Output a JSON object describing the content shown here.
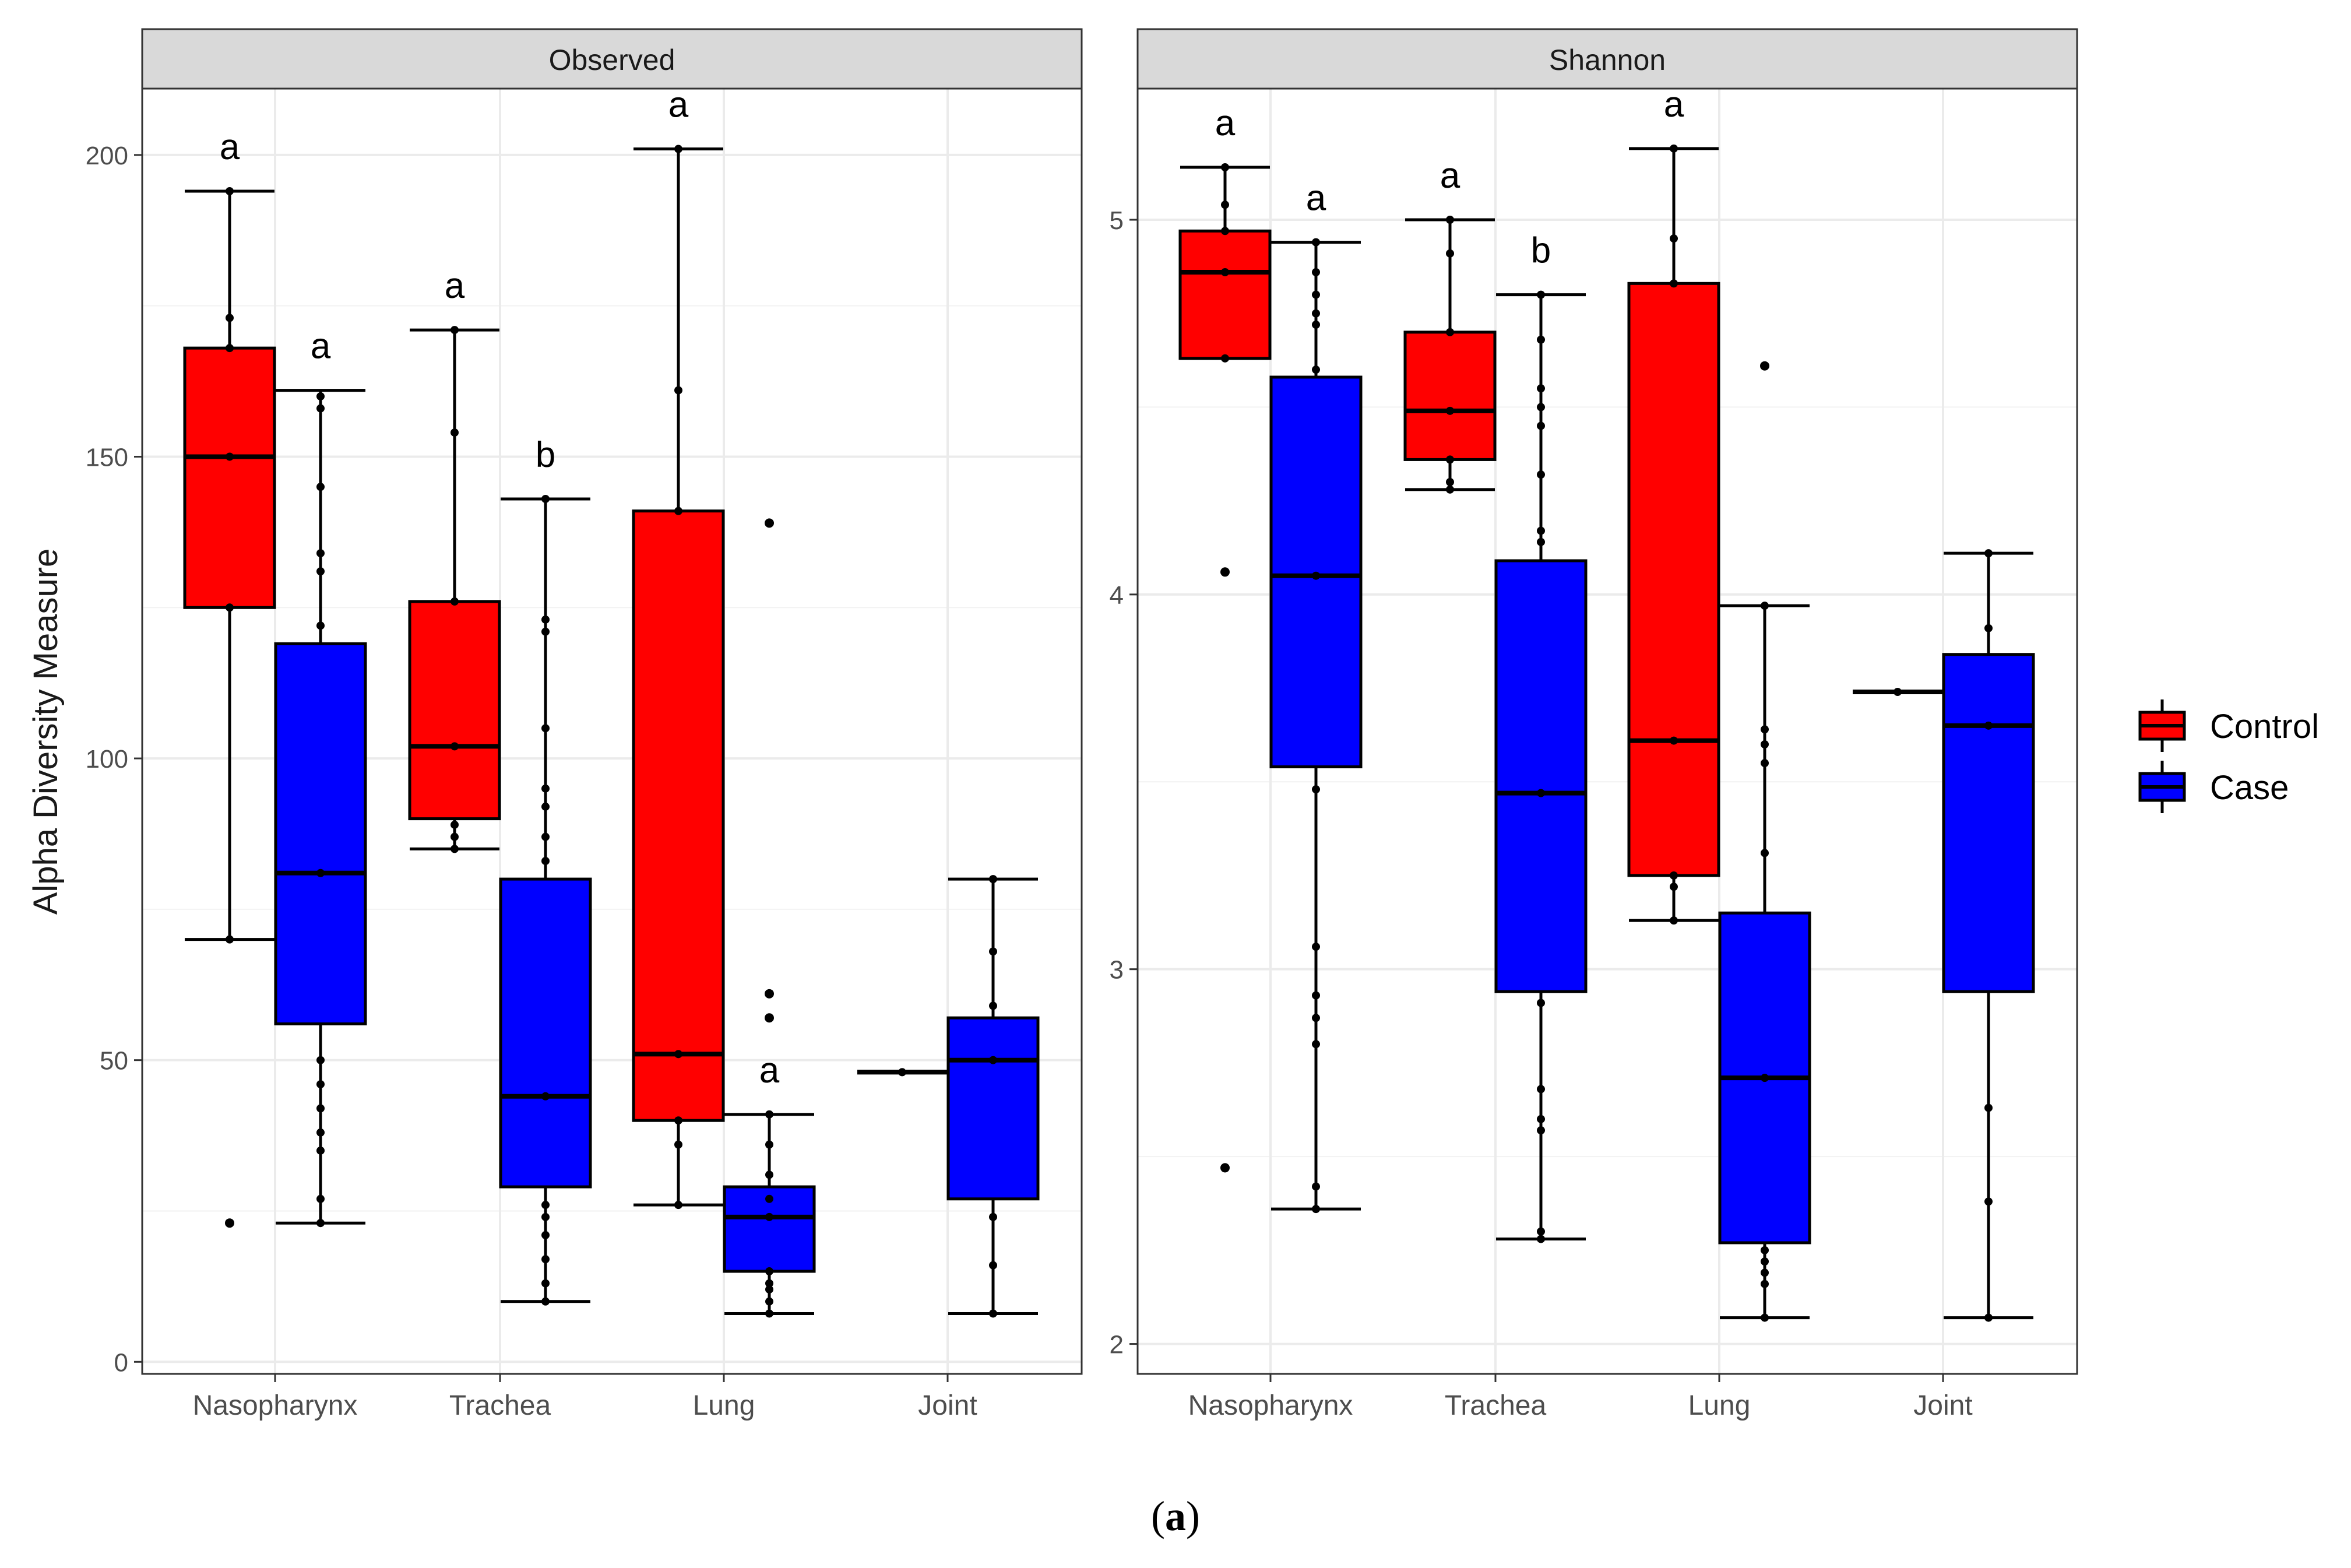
{
  "figure": {
    "ylabel": "Alpha Diversity Measure",
    "caption_open": "(",
    "caption_letter": "a",
    "caption_close": ")"
  },
  "colors": {
    "control": "#ff0000",
    "case": "#0000ff",
    "strip": "#d9d9d9",
    "grid": "#ebebeb"
  },
  "chart_data": [
    {
      "type": "box",
      "title": "Observed",
      "xlabel": "",
      "ylabel": "Alpha Diversity Measure",
      "categories": [
        "Nasopharynx",
        "Trachea",
        "Lung",
        "Joint"
      ],
      "ylim": [
        -2,
        211
      ],
      "yticks": [
        0,
        50,
        100,
        150,
        200
      ],
      "ytick_labels": [
        "0",
        "50",
        "100",
        "150",
        "200"
      ],
      "series": [
        {
          "name": "Control",
          "boxes": [
            {
              "category": "Nasopharynx",
              "min": 70,
              "q1": 125,
              "median": 150,
              "q3": 168,
              "max": 194,
              "outliers": [
                23
              ],
              "points": [
                70,
                125,
                150,
                168,
                173,
                194
              ],
              "letter": "a"
            },
            {
              "category": "Trachea",
              "min": 85,
              "q1": 90,
              "median": 102,
              "q3": 126,
              "max": 171,
              "outliers": [],
              "points": [
                85,
                87,
                89,
                102,
                126,
                154,
                171
              ],
              "letter": "a"
            },
            {
              "category": "Lung",
              "min": 26,
              "q1": 40,
              "median": 51,
              "q3": 141,
              "max": 201,
              "outliers": [],
              "points": [
                26,
                36,
                40,
                51,
                141,
                161,
                201
              ],
              "letter": "a"
            },
            {
              "category": "Joint",
              "min": 48,
              "q1": 48,
              "median": 48,
              "q3": 48,
              "max": 48,
              "outliers": [],
              "points": [
                48
              ],
              "letter": ""
            }
          ]
        },
        {
          "name": "Case",
          "boxes": [
            {
              "category": "Nasopharynx",
              "min": 23,
              "q1": 56,
              "median": 81,
              "q3": 119,
              "max": 161,
              "outliers": [],
              "points": [
                23,
                27,
                35,
                38,
                42,
                46,
                50,
                81,
                122,
                131,
                134,
                145,
                158,
                160
              ],
              "letter": "a"
            },
            {
              "category": "Trachea",
              "min": 10,
              "q1": 29,
              "median": 44,
              "q3": 80,
              "max": 143,
              "outliers": [],
              "points": [
                10,
                13,
                17,
                21,
                24,
                26,
                44,
                83,
                87,
                92,
                95,
                105,
                121,
                123,
                143
              ],
              "letter": "b"
            },
            {
              "category": "Lung",
              "min": 8,
              "q1": 15,
              "median": 24,
              "q3": 29,
              "max": 41,
              "outliers": [
                57,
                61,
                139
              ],
              "points": [
                8,
                10,
                12,
                13,
                15,
                24,
                27,
                31,
                36,
                41
              ],
              "letter": "a"
            },
            {
              "category": "Joint",
              "min": 8,
              "q1": 27,
              "median": 50,
              "q3": 57,
              "max": 80,
              "outliers": [],
              "points": [
                8,
                16,
                24,
                50,
                59,
                68,
                80
              ],
              "letter": ""
            }
          ]
        }
      ]
    },
    {
      "type": "box",
      "title": "Shannon",
      "xlabel": "",
      "ylabel": "",
      "categories": [
        "Nasopharynx",
        "Trachea",
        "Lung",
        "Joint"
      ],
      "ylim": [
        1.92,
        5.35
      ],
      "yticks": [
        2,
        3,
        4,
        5
      ],
      "ytick_labels": [
        "2",
        "3",
        "4",
        "5"
      ],
      "series": [
        {
          "name": "Control",
          "boxes": [
            {
              "category": "Nasopharynx",
              "min": 4.63,
              "q1": 4.63,
              "median": 4.86,
              "q3": 4.97,
              "max": 5.14,
              "outliers": [
                4.06,
                2.47
              ],
              "points": [
                4.63,
                4.86,
                4.97,
                5.04,
                5.14
              ],
              "letter": "a"
            },
            {
              "category": "Trachea",
              "min": 4.28,
              "q1": 4.36,
              "median": 4.49,
              "q3": 4.7,
              "max": 5.0,
              "outliers": [],
              "points": [
                4.28,
                4.3,
                4.36,
                4.49,
                4.7,
                4.91,
                5.0
              ],
              "letter": "a"
            },
            {
              "category": "Lung",
              "min": 3.13,
              "q1": 3.25,
              "median": 3.61,
              "q3": 4.83,
              "max": 5.19,
              "outliers": [],
              "points": [
                3.13,
                3.22,
                3.25,
                3.61,
                4.83,
                4.95,
                5.19
              ],
              "letter": "a"
            },
            {
              "category": "Joint",
              "min": 3.74,
              "q1": 3.74,
              "median": 3.74,
              "q3": 3.74,
              "max": 3.74,
              "outliers": [],
              "points": [
                3.74
              ],
              "letter": ""
            }
          ]
        },
        {
          "name": "Case",
          "boxes": [
            {
              "category": "Nasopharynx",
              "min": 2.36,
              "q1": 3.54,
              "median": 4.05,
              "q3": 4.58,
              "max": 4.94,
              "outliers": [],
              "points": [
                2.36,
                2.42,
                2.8,
                2.87,
                2.93,
                3.06,
                3.48,
                4.05,
                4.6,
                4.72,
                4.75,
                4.8,
                4.86,
                4.94
              ],
              "letter": "a"
            },
            {
              "category": "Trachea",
              "min": 2.28,
              "q1": 2.94,
              "median": 3.47,
              "q3": 4.09,
              "max": 4.8,
              "outliers": [],
              "points": [
                2.28,
                2.3,
                2.57,
                2.6,
                2.68,
                2.91,
                3.47,
                4.14,
                4.17,
                4.32,
                4.45,
                4.5,
                4.55,
                4.68,
                4.8
              ],
              "letter": "b"
            },
            {
              "category": "Lung",
              "min": 2.07,
              "q1": 2.27,
              "median": 2.71,
              "q3": 3.15,
              "max": 3.97,
              "outliers": [
                4.61
              ],
              "points": [
                2.07,
                2.16,
                2.19,
                2.22,
                2.25,
                2.71,
                3.31,
                3.55,
                3.6,
                3.64,
                3.97
              ],
              "letter": ""
            },
            {
              "category": "Joint",
              "min": 2.07,
              "q1": 2.94,
              "median": 3.65,
              "q3": 3.84,
              "max": 4.11,
              "outliers": [],
              "points": [
                2.07,
                2.38,
                2.63,
                3.65,
                3.91,
                4.11
              ],
              "letter": ""
            }
          ]
        }
      ]
    }
  ],
  "legend": {
    "title": "",
    "entries": [
      "Control",
      "Case"
    ],
    "position": "right"
  }
}
